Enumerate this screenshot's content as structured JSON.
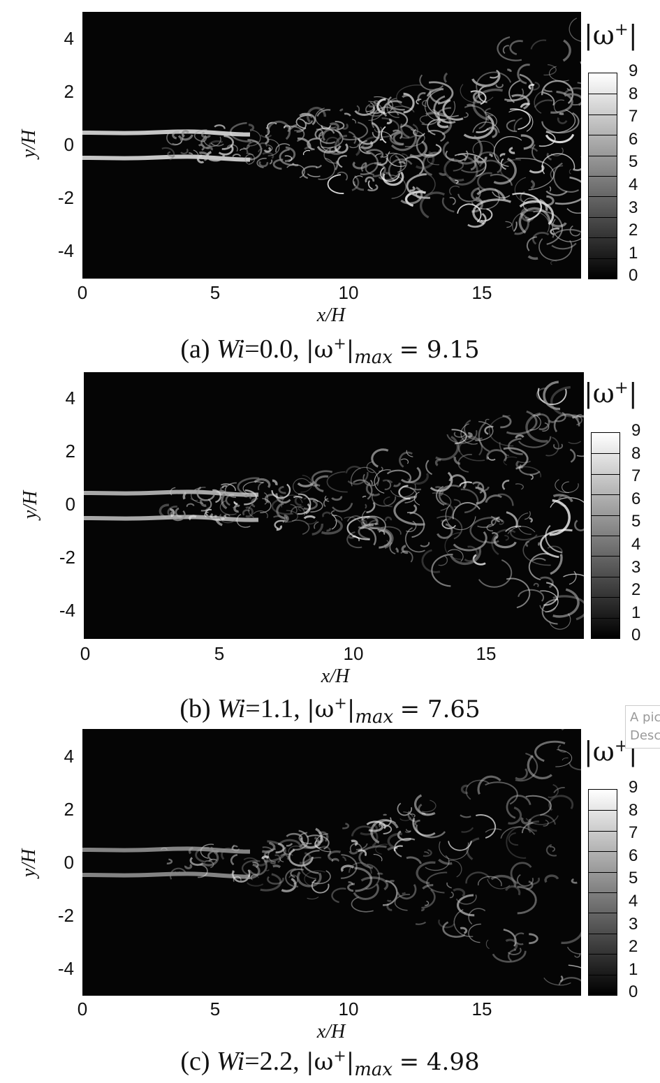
{
  "panels": [
    {
      "yticks": [
        "4",
        "2",
        "0",
        "-2",
        "-4"
      ],
      "xticks": [
        "0",
        "5",
        "10",
        "15"
      ],
      "ylabel": "y/H",
      "xlabel": "x/H",
      "cb_title": "|ω+|",
      "cb_ticks": [
        "9",
        "8",
        "7",
        "6",
        "5",
        "4",
        "3",
        "2",
        "1",
        "0"
      ],
      "caption": {
        "label": "(a)",
        "wi_label": "Wi",
        "wi_value": "=0.0,",
        "omega": "|ω+|",
        "sub": "max",
        "eq": "= 9.15"
      },
      "intensity": 1.0
    },
    {
      "yticks": [
        "4",
        "2",
        "0",
        "-2",
        "-4"
      ],
      "xticks": [
        "0",
        "5",
        "10",
        "15"
      ],
      "ylabel": "y/H",
      "xlabel": "x/H",
      "cb_title": "|ω+|",
      "cb_ticks": [
        "9",
        "8",
        "7",
        "6",
        "5",
        "4",
        "3",
        "2",
        "1",
        "0"
      ],
      "caption": {
        "label": "(b)",
        "wi_label": "Wi",
        "wi_value": "=1.1,",
        "omega": "|ω+|",
        "sub": "max",
        "eq": "= 7.65"
      },
      "intensity": 0.8
    },
    {
      "yticks": [
        "4",
        "2",
        "0",
        "-2",
        "-4"
      ],
      "xticks": [
        "0",
        "5",
        "10",
        "15"
      ],
      "ylabel": "y/H",
      "xlabel": "x/H",
      "cb_title": "|ω+|",
      "cb_ticks": [
        "9",
        "8",
        "7",
        "6",
        "5",
        "4",
        "3",
        "2",
        "1",
        "0"
      ],
      "caption": {
        "label": "(c)",
        "wi_label": "Wi",
        "wi_value": "=2.2,",
        "omega": "|ω+|",
        "sub": "max",
        "eq": "= 4.98"
      },
      "intensity": 0.55
    }
  ],
  "tooltip": {
    "line1": "A pic",
    "line2": "Desc"
  }
}
